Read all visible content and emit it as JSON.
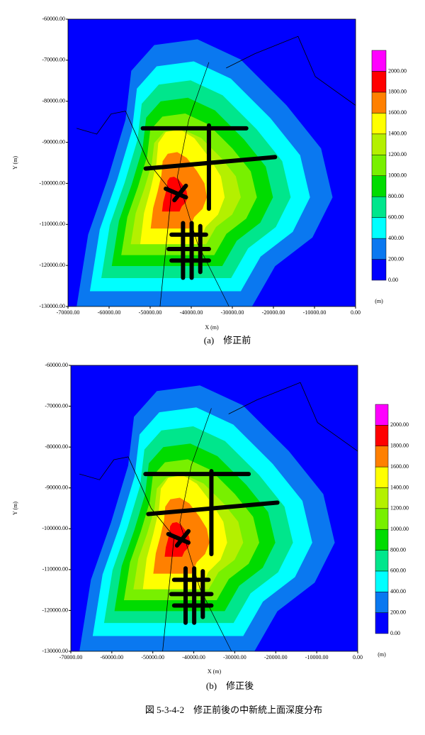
{
  "chart_data": [
    {
      "type": "contour",
      "caption": "(a)　修正前",
      "xlabel": "X (m)",
      "ylabel": "Y (m)",
      "xlim": [
        -70000,
        0
      ],
      "ylim": [
        -130000,
        -60000
      ],
      "xticks": [
        {
          "value": -70000,
          "label": "-70000.00"
        },
        {
          "value": -60000,
          "label": "-60000.00"
        },
        {
          "value": -50000,
          "label": "-50000.00"
        },
        {
          "value": -40000,
          "label": "-40000.00"
        },
        {
          "value": -30000,
          "label": "-30000.00"
        },
        {
          "value": -20000,
          "label": "-20000.00"
        },
        {
          "value": -10000,
          "label": "-10000.00"
        },
        {
          "value": 0,
          "label": "0.00"
        }
      ],
      "yticks": [
        {
          "value": -60000,
          "label": "-60000.00"
        },
        {
          "value": -70000,
          "label": "-70000.00"
        },
        {
          "value": -80000,
          "label": "-80000.00"
        },
        {
          "value": -90000,
          "label": "-90000.00"
        },
        {
          "value": -100000,
          "label": "-100000.00"
        },
        {
          "value": -110000,
          "label": "-110000.00"
        },
        {
          "value": -120000,
          "label": "-120000.00"
        },
        {
          "value": -130000,
          "label": "-130000.00"
        }
      ],
      "colorbar": {
        "unit": "(m)",
        "levels": [
          {
            "value": 0,
            "label": "0.00"
          },
          {
            "value": 200,
            "label": "200.00"
          },
          {
            "value": 400,
            "label": "400.00"
          },
          {
            "value": 600,
            "label": "600.00"
          },
          {
            "value": 800,
            "label": "800.00"
          },
          {
            "value": 1000,
            "label": "1000.00"
          },
          {
            "value": 1200,
            "label": "1200.00"
          },
          {
            "value": 1400,
            "label": "1400.00"
          },
          {
            "value": 1600,
            "label": "1600.00"
          },
          {
            "value": 1800,
            "label": "1800.00"
          },
          {
            "value": 2000,
            "label": "2000.00"
          }
        ],
        "colors": [
          "#0000ff",
          "#0a78f0",
          "#00ffff",
          "#00e68c",
          "#00dc00",
          "#78f000",
          "#b4f000",
          "#ffff00",
          "#ff8000",
          "#ff0000",
          "#ff00ff"
        ]
      }
    },
    {
      "type": "contour",
      "caption": "(b)　修正後",
      "xlabel": "X (m)",
      "ylabel": "Y (m)",
      "xlim": [
        -70000,
        0
      ],
      "ylim": [
        -130000,
        -60000
      ],
      "xticks": [
        {
          "value": -70000,
          "label": "-70000.00"
        },
        {
          "value": -60000,
          "label": "-60000.00"
        },
        {
          "value": -50000,
          "label": "-50000.00"
        },
        {
          "value": -40000,
          "label": "-40000.00"
        },
        {
          "value": -30000,
          "label": "-30000.00"
        },
        {
          "value": -20000,
          "label": "-20000.00"
        },
        {
          "value": -10000,
          "label": "-10000.00"
        },
        {
          "value": 0,
          "label": "0.00"
        }
      ],
      "yticks": [
        {
          "value": -60000,
          "label": "-60000.00"
        },
        {
          "value": -70000,
          "label": "-70000.00"
        },
        {
          "value": -80000,
          "label": "-80000.00"
        },
        {
          "value": -90000,
          "label": "-90000.00"
        },
        {
          "value": -100000,
          "label": "-100000.00"
        },
        {
          "value": -110000,
          "label": "-110000.00"
        },
        {
          "value": -120000,
          "label": "-120000.00"
        },
        {
          "value": -130000,
          "label": "-130000.00"
        }
      ],
      "colorbar": {
        "unit": "(m)",
        "levels": [
          {
            "value": 0,
            "label": "0.00"
          },
          {
            "value": 200,
            "label": "200.00"
          },
          {
            "value": 400,
            "label": "400.00"
          },
          {
            "value": 600,
            "label": "600.00"
          },
          {
            "value": 800,
            "label": "800.00"
          },
          {
            "value": 1000,
            "label": "1000.00"
          },
          {
            "value": 1200,
            "label": "1200.00"
          },
          {
            "value": 1400,
            "label": "1400.00"
          },
          {
            "value": 1600,
            "label": "1600.00"
          },
          {
            "value": 1800,
            "label": "1800.00"
          },
          {
            "value": 2000,
            "label": "2000.00"
          }
        ],
        "colors": [
          "#0000ff",
          "#0a78f0",
          "#00ffff",
          "#00e68c",
          "#00dc00",
          "#78f000",
          "#b4f000",
          "#ffff00",
          "#ff8000",
          "#ff0000",
          "#ff00ff"
        ]
      }
    }
  ],
  "figure_caption": "図 5-3-4-2　修正前後の中新統上面深度分布"
}
